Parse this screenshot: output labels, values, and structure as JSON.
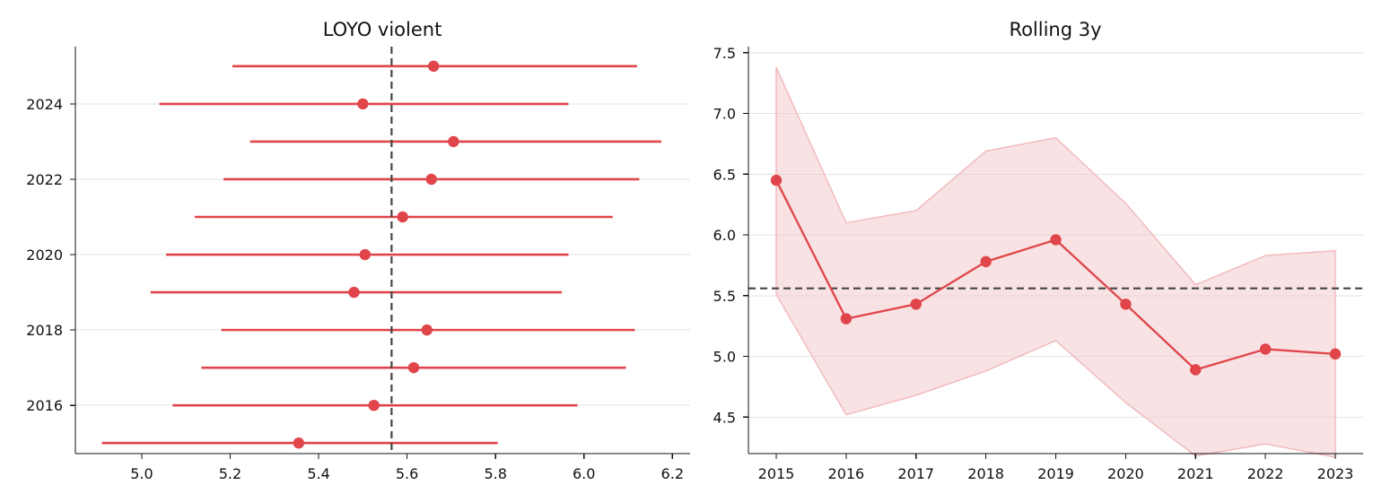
{
  "colors": {
    "series": "#e0454a",
    "band_fill": "#f2c5c7",
    "band_edge": "#f2b8bb",
    "reference": "#444444",
    "grid": "#e3e3e3",
    "axis": "#111111"
  },
  "chart_data": [
    {
      "type": "scatter",
      "title": "LOYO violent",
      "xlabel": "",
      "ylabel": "",
      "grid": "horizontal",
      "xlim": [
        4.85,
        6.24
      ],
      "x_ticks": [
        "5.0",
        "5.2",
        "5.4",
        "5.6",
        "5.8",
        "6.0",
        "6.2"
      ],
      "y_ticks": [
        "2016",
        "2018",
        "2020",
        "2022",
        "2024"
      ],
      "reference_line": 5.565,
      "points": [
        {
          "year": 2015,
          "estimate": 5.355,
          "lower": 4.91,
          "upper": 5.805
        },
        {
          "year": 2016,
          "estimate": 5.525,
          "lower": 5.07,
          "upper": 5.985
        },
        {
          "year": 2017,
          "estimate": 5.615,
          "lower": 5.135,
          "upper": 6.095
        },
        {
          "year": 2018,
          "estimate": 5.645,
          "lower": 5.18,
          "upper": 6.115
        },
        {
          "year": 2019,
          "estimate": 5.48,
          "lower": 5.02,
          "upper": 5.95
        },
        {
          "year": 2020,
          "estimate": 5.505,
          "lower": 5.055,
          "upper": 5.965
        },
        {
          "year": 2021,
          "estimate": 5.59,
          "lower": 5.12,
          "upper": 6.065
        },
        {
          "year": 2022,
          "estimate": 5.655,
          "lower": 5.185,
          "upper": 6.125
        },
        {
          "year": 2023,
          "estimate": 5.705,
          "lower": 5.245,
          "upper": 6.175
        },
        {
          "year": 2024,
          "estimate": 5.5,
          "lower": 5.04,
          "upper": 5.965
        },
        {
          "year": 2025,
          "estimate": 5.66,
          "lower": 5.205,
          "upper": 6.12
        }
      ]
    },
    {
      "type": "line",
      "title": "Rolling 3y",
      "xlabel": "",
      "ylabel": "",
      "grid": "horizontal",
      "ylim": [
        4.2,
        7.55
      ],
      "x": [
        "2015",
        "2016",
        "2017",
        "2018",
        "2019",
        "2020",
        "2021",
        "2022",
        "2023"
      ],
      "y_ticks": [
        "4.5",
        "5.0",
        "5.5",
        "6.0",
        "6.5",
        "7.0",
        "7.5"
      ],
      "reference_line": 5.56,
      "values": [
        6.45,
        5.31,
        5.43,
        5.78,
        5.96,
        5.43,
        4.89,
        5.06,
        5.02
      ],
      "band_upper": [
        7.38,
        6.1,
        6.2,
        6.69,
        6.8,
        6.26,
        5.59,
        5.83,
        5.87
      ],
      "band_lower": [
        5.51,
        4.52,
        4.68,
        4.88,
        5.13,
        4.62,
        4.18,
        4.28,
        4.17
      ]
    }
  ]
}
